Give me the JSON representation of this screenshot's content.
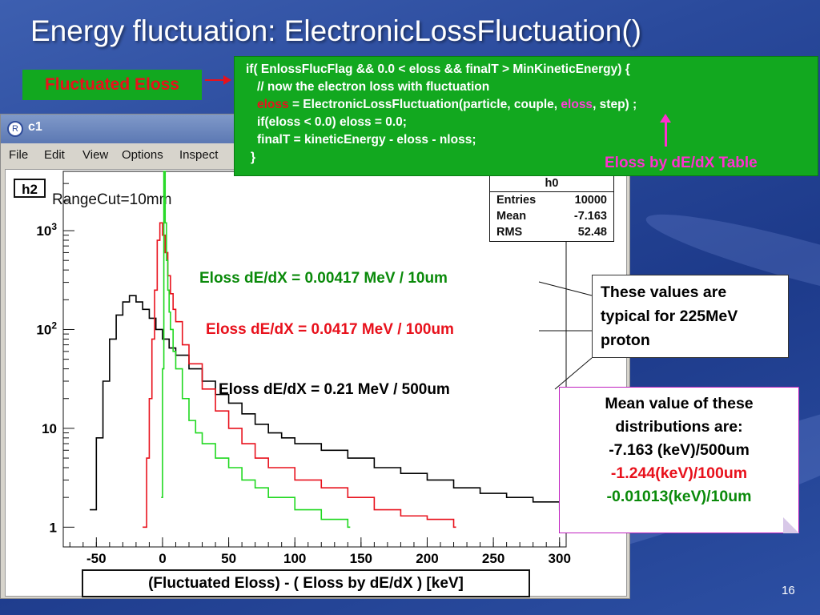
{
  "slide": {
    "title": "Energy fluctuation: ElectronicLossFluctuation()",
    "fluctuated_label": "Fluctuated Eloss",
    "eloss_table_label": "Eloss by dE/dX Table",
    "page_number": "16",
    "code": {
      "line1": "if( EnlossFlucFlag && 0.0 < eloss && finalT > MinKineticEnergy) {",
      "line2": "//  now the electron loss with fluctuation",
      "line3_a": "eloss",
      "line3_b": " = ElectronicLossFluctuation(particle, couple, ",
      "line3_c": "eloss",
      "line3_d": ", step) ;",
      "line4": "if(eloss < 0.0) eloss = 0.0;",
      "line5": "finalT = kineticEnergy - eloss - nloss;",
      "line6": "}"
    },
    "colors": {
      "green_box": "#12a81f",
      "red": "#e8111c",
      "pink": "#ff2fd0"
    }
  },
  "window": {
    "title": "c1",
    "menu": [
      "File",
      "Edit",
      "View",
      "Options",
      "Inspect"
    ],
    "hist_name": "h2",
    "rangecut": "RangeCut=10mm",
    "stats": {
      "name": "h0",
      "rows": [
        {
          "label": "Entries",
          "value": "10000"
        },
        {
          "label": "Mean",
          "value": "-7.163"
        },
        {
          "label": "RMS",
          "value": "52.48"
        }
      ]
    }
  },
  "annotations": {
    "a10um": "Eloss dE/dX = 0.00417 MeV / 10um",
    "a100um": "Eloss dE/dX = 0.0417 MeV / 100um",
    "a500um": "Eloss dE/dX = 0.21 MeV / 500um",
    "typical": [
      "These values are",
      "typical for 225MeV",
      "proton"
    ],
    "mean_title": [
      "Mean value of these",
      "distributions are:"
    ],
    "mean_vals": [
      "-7.163 (keV)/500um",
      "-1.244(keV)/100um",
      "-0.01013(keV)/10um"
    ]
  },
  "chart_data": {
    "type": "line",
    "xlabel": "(Fluctuated Eloss)  - ( Eloss by dE/dX )  [keV]",
    "ylabel": "",
    "xlim": [
      -75,
      305
    ],
    "ylim_log10": [
      -0.2,
      3.6
    ],
    "y_scale": "log",
    "x_ticks": [
      "-50",
      "0",
      "50",
      "100",
      "150",
      "200",
      "250",
      "300"
    ],
    "y_ticks": [
      "1",
      "10",
      "10^2",
      "10^3"
    ],
    "series": [
      {
        "name": "500um",
        "color": "#000000",
        "x": [
          -55,
          -50,
          -45,
          -40,
          -35,
          -30,
          -25,
          -20,
          -15,
          -10,
          -5,
          0,
          5,
          10,
          20,
          30,
          40,
          50,
          60,
          70,
          80,
          90,
          100,
          120,
          140,
          160,
          180,
          200,
          220,
          240,
          260,
          280,
          300
        ],
        "y": [
          1.5,
          8,
          30,
          80,
          140,
          190,
          220,
          190,
          160,
          130,
          100,
          80,
          65,
          55,
          40,
          30,
          22,
          18,
          14,
          11,
          9,
          8,
          7,
          6,
          5,
          4,
          3.5,
          3,
          2.5,
          2.2,
          2,
          1.8,
          1.5
        ]
      },
      {
        "name": "100um",
        "color": "#e8111c",
        "x": [
          -15,
          -12,
          -10,
          -8,
          -6,
          -4,
          -2,
          0,
          2,
          4,
          6,
          8,
          10,
          15,
          20,
          30,
          40,
          50,
          60,
          70,
          80,
          100,
          120,
          140,
          160,
          180,
          200,
          220
        ],
        "y": [
          1,
          5,
          20,
          80,
          250,
          800,
          1200,
          900,
          600,
          350,
          230,
          160,
          120,
          70,
          45,
          25,
          15,
          10,
          7,
          5,
          4,
          3,
          2.5,
          2,
          1.5,
          1.3,
          1.2,
          1
        ]
      },
      {
        "name": "10um",
        "color": "#1fd81f",
        "x": [
          -1,
          0,
          1,
          2,
          3,
          4,
          5,
          6,
          8,
          10,
          15,
          20,
          25,
          30,
          40,
          50,
          60,
          70,
          80,
          100,
          120,
          140
        ],
        "y": [
          2,
          40,
          4000,
          1200,
          500,
          250,
          150,
          100,
          60,
          40,
          20,
          12,
          9,
          7,
          5,
          4,
          3,
          2.5,
          2,
          1.5,
          1.2,
          1
        ]
      }
    ]
  }
}
